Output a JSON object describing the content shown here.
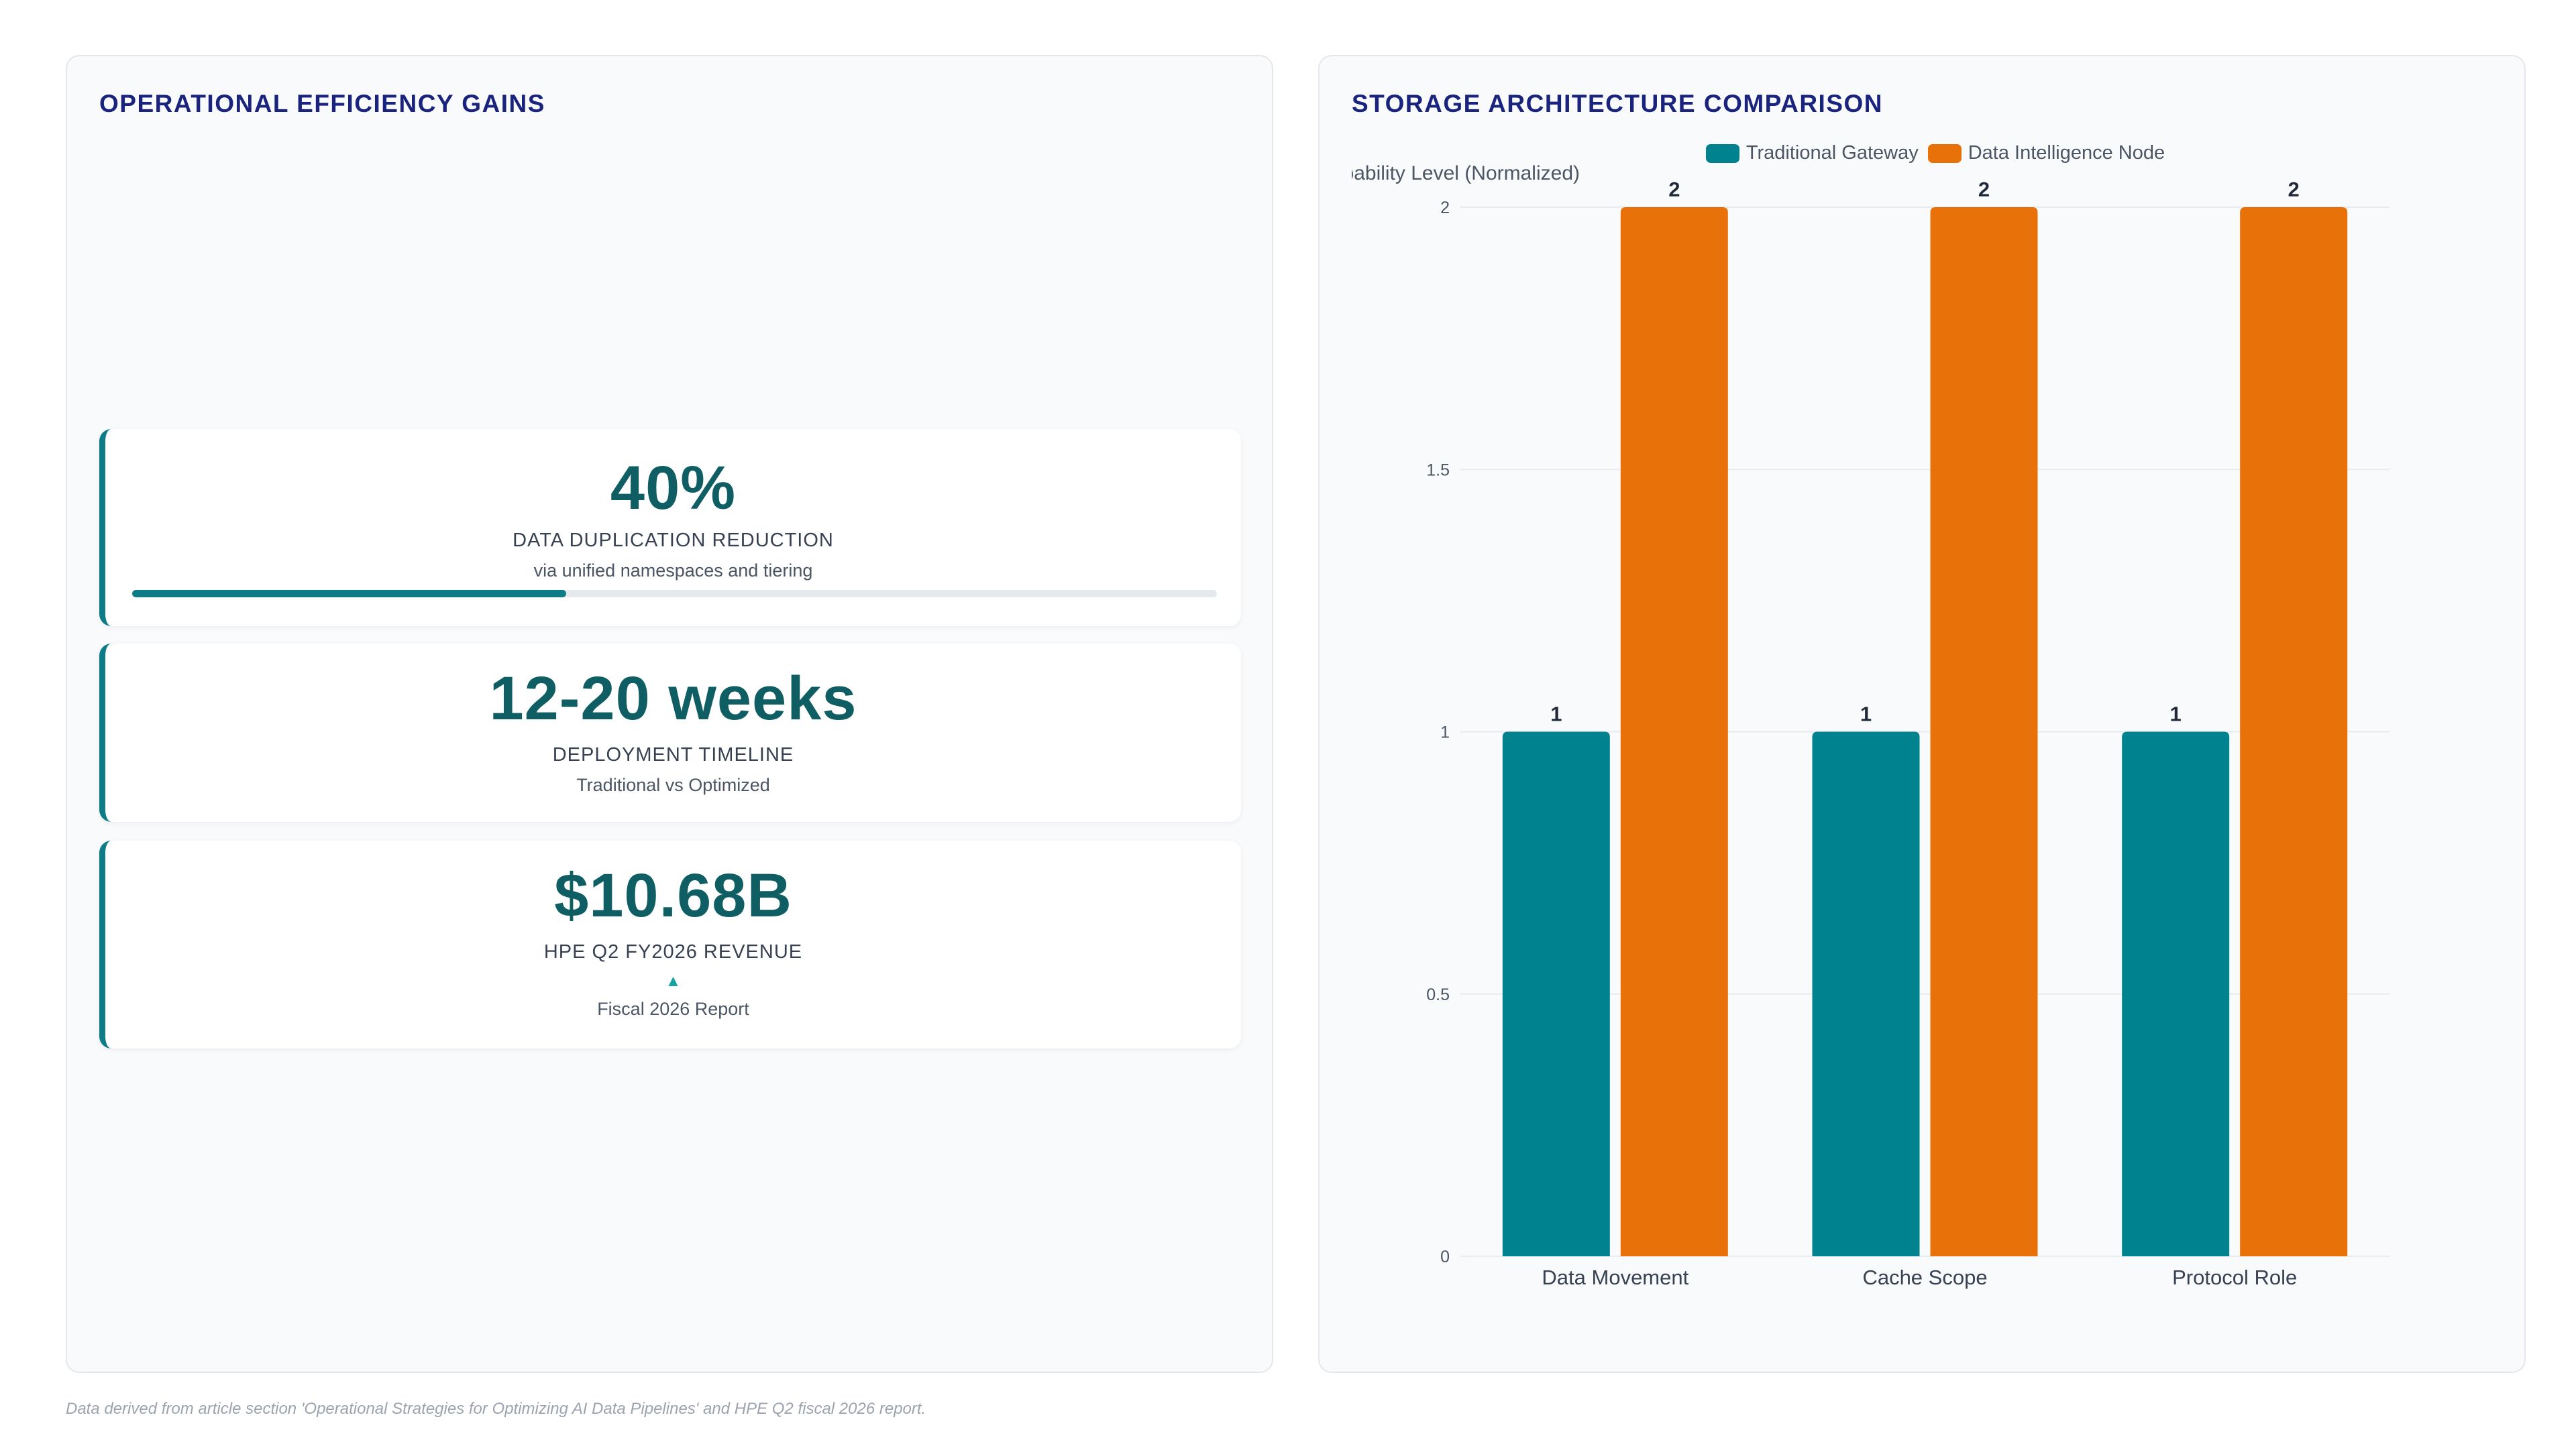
{
  "left_panel": {
    "title": "OPERATIONAL EFFICIENCY GAINS",
    "cards": [
      {
        "value": "40%",
        "label": "DATA DUPLICATION REDUCTION",
        "subtext": "via unified namespaces and tiering",
        "progress_percent": 40
      },
      {
        "value": "12-20 weeks",
        "label": "DEPLOYMENT TIMELINE",
        "subtext": "Traditional vs Optimized"
      },
      {
        "value": "$10.68B",
        "label": "HPE Q2 FY2026 REVENUE",
        "trend_icon": "▲",
        "subtext": "Fiscal 2026 Report"
      }
    ]
  },
  "right_panel": {
    "title": "STORAGE ARCHITECTURE COMPARISON"
  },
  "chart_data": {
    "type": "bar",
    "title": "STORAGE ARCHITECTURE COMPARISON",
    "categories": [
      "Data Movement",
      "Cache Scope",
      "Protocol Role"
    ],
    "series": [
      {
        "name": "Traditional Gateway",
        "values": [
          1,
          1,
          1
        ],
        "color": "#00838f"
      },
      {
        "name": "Data Intelligence Node",
        "values": [
          2,
          2,
          2
        ],
        "color": "#e8710a"
      }
    ],
    "ylabel": "pability Level (Normalized)",
    "ylim": [
      0,
      2
    ],
    "yticks": [
      "0",
      "0.5",
      "1",
      "1.5",
      "2"
    ],
    "legend_position": "top-center",
    "grid": true,
    "data_labels": true
  },
  "footnote": "Data derived from article section 'Operational Strategies for Optimizing AI Data Pipelines' and HPE Q2 fiscal 2026 report."
}
